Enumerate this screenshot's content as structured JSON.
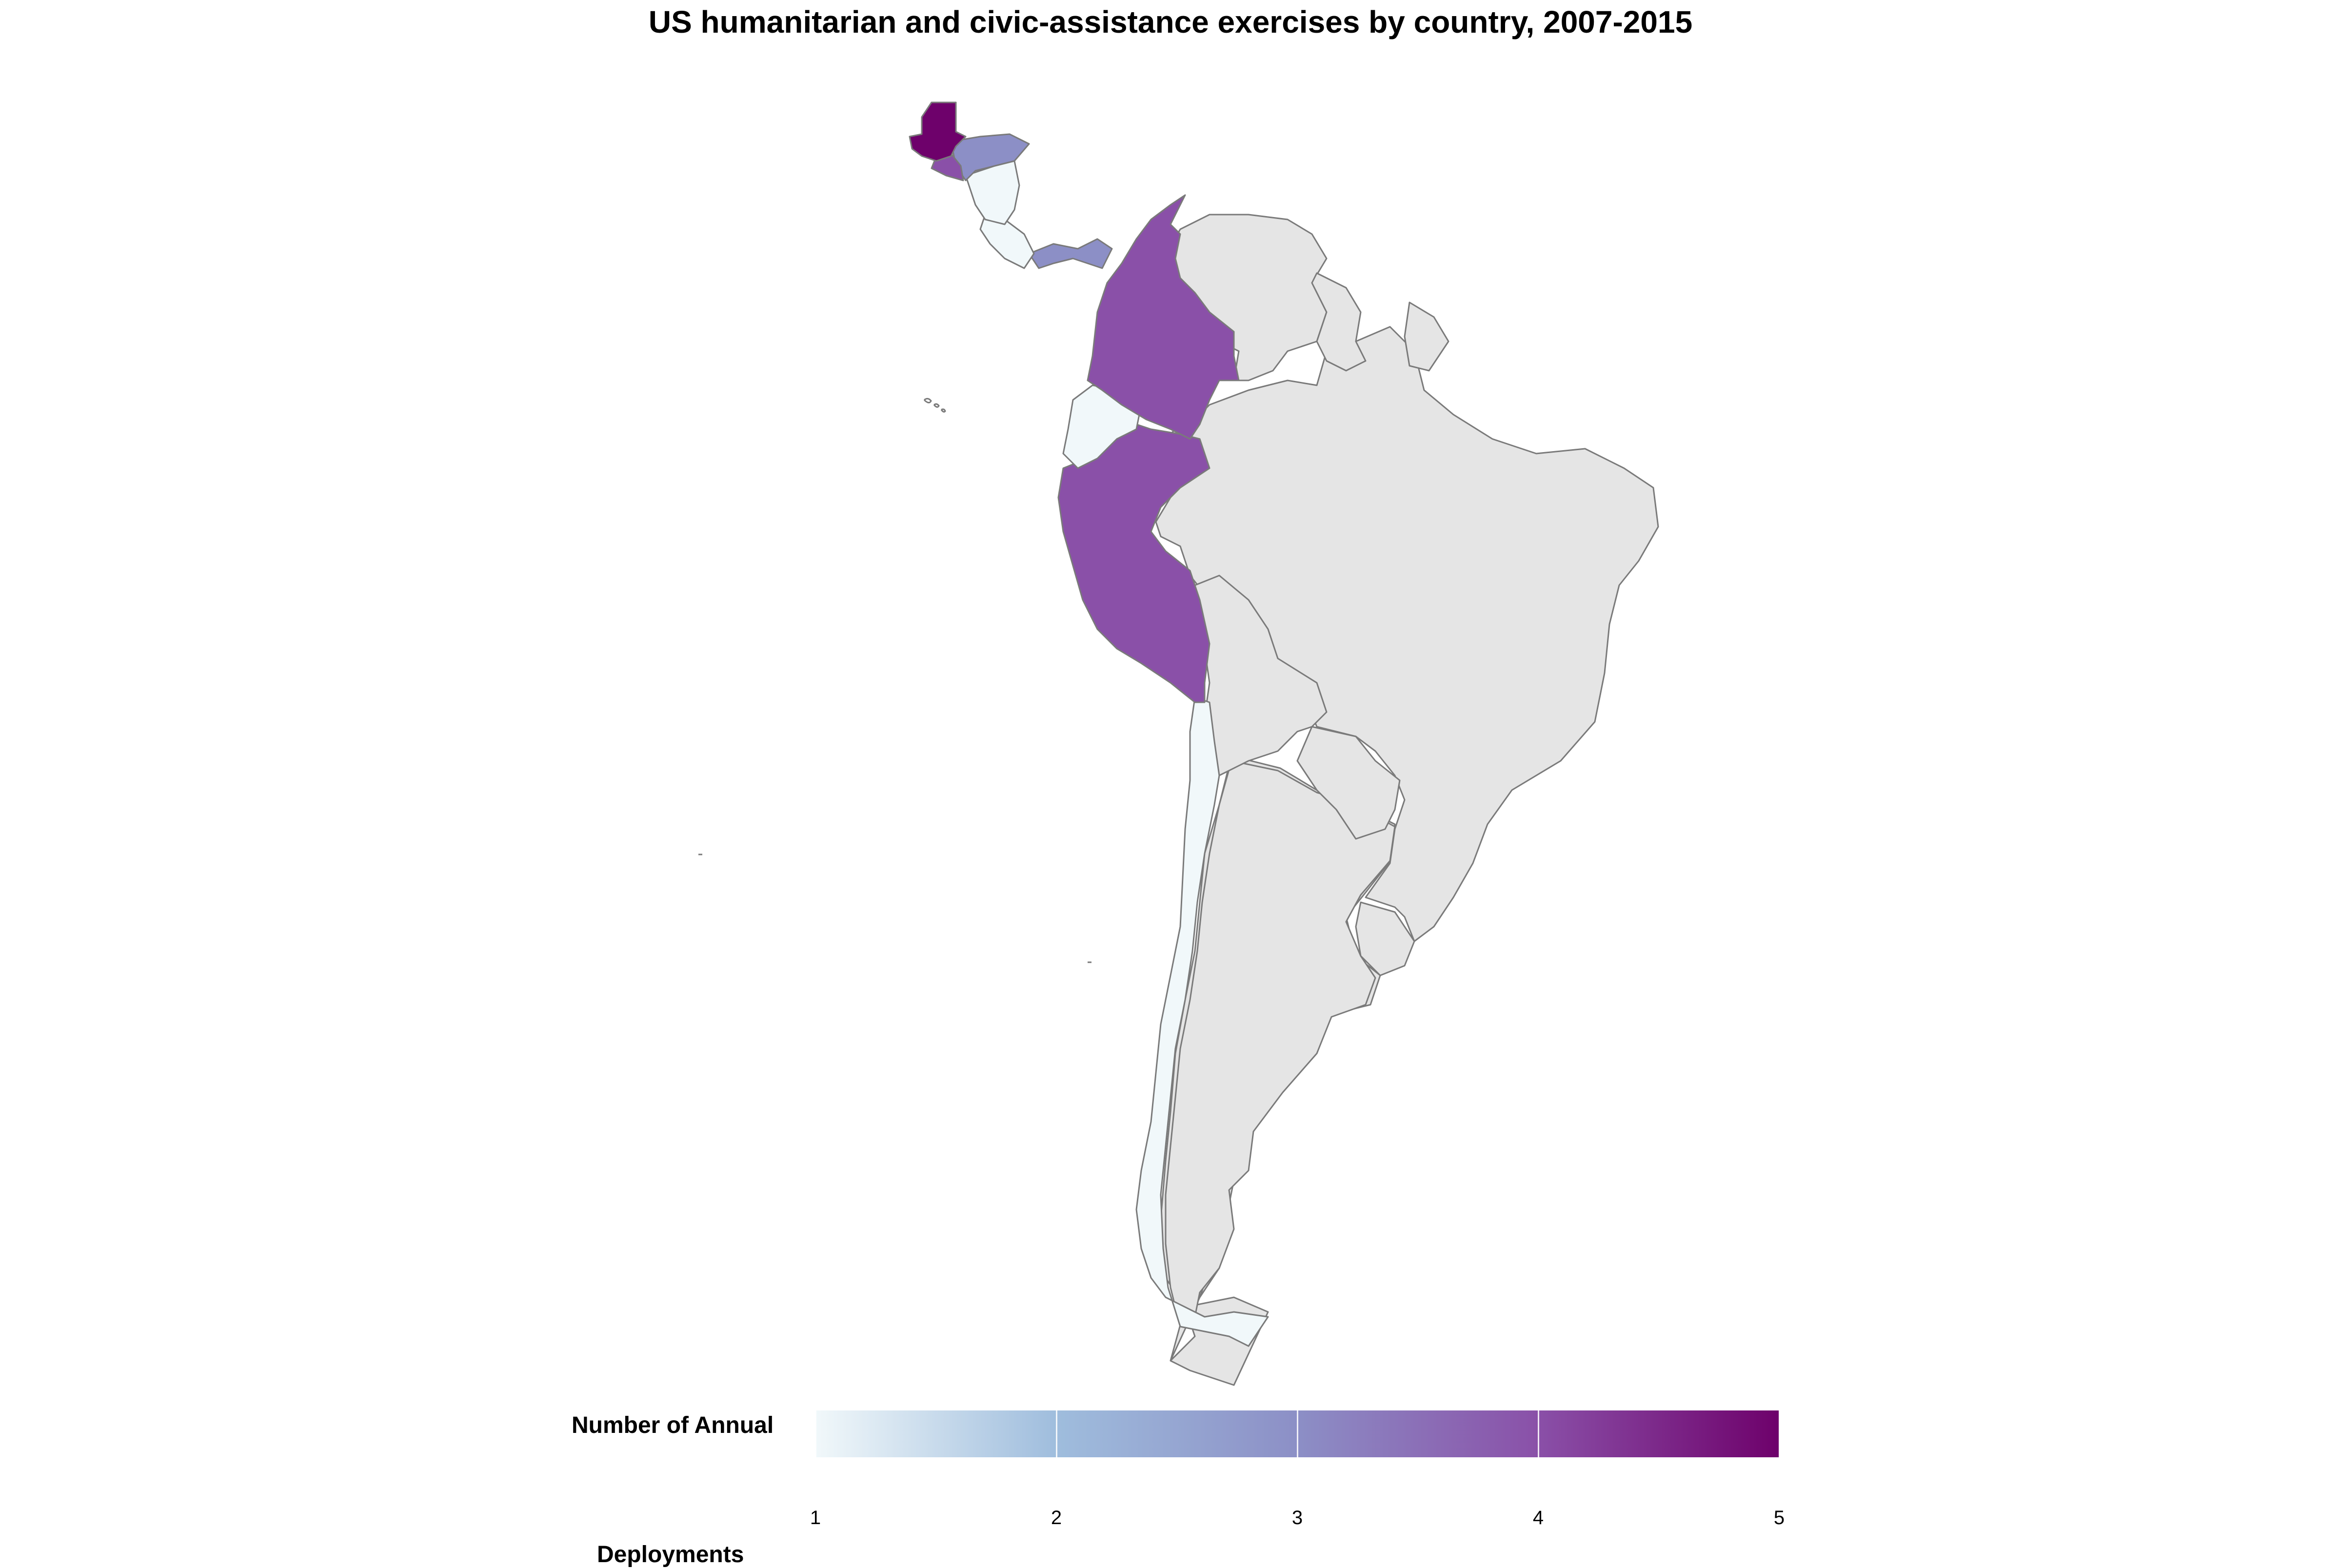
{
  "title": "US humanitarian and civic-assistance exercises by country, 2007-2015",
  "legend": {
    "title_line1": "Number of Annual",
    "title_line2": "Deployments",
    "min": 1,
    "max": 5,
    "ticks": [
      "1",
      "2",
      "3",
      "4",
      "5"
    ],
    "colors": [
      "#f1f8fa",
      "#9fbddd",
      "#8c8fc6",
      "#8a50a8",
      "#6e016b"
    ]
  },
  "no_data_color": "#e5e5e5",
  "chart_data": {
    "type": "choropleth",
    "title": "US humanitarian and civic-assistance exercises by country, 2007-2015",
    "legend_title": "Number of Annual Deployments",
    "scale": [
      1,
      5
    ],
    "legend_placement": "bottom",
    "countries": [
      {
        "name": "Guatemala",
        "value": 5
      },
      {
        "name": "El Salvador",
        "value": 4
      },
      {
        "name": "Honduras",
        "value": 3
      },
      {
        "name": "Nicaragua",
        "value": 1
      },
      {
        "name": "Costa Rica",
        "value": 1
      },
      {
        "name": "Panama",
        "value": 3
      },
      {
        "name": "Colombia",
        "value": 4
      },
      {
        "name": "Ecuador",
        "value": 1
      },
      {
        "name": "Peru",
        "value": 4
      },
      {
        "name": "Chile",
        "value": 1
      },
      {
        "name": "Suriname",
        "value": 1
      },
      {
        "name": "Venezuela",
        "value": null
      },
      {
        "name": "Guyana",
        "value": null
      },
      {
        "name": "French Guiana",
        "value": null
      },
      {
        "name": "Brazil",
        "value": null
      },
      {
        "name": "Bolivia",
        "value": null
      },
      {
        "name": "Paraguay",
        "value": null
      },
      {
        "name": "Uruguay",
        "value": null
      },
      {
        "name": "Argentina",
        "value": null
      }
    ]
  }
}
